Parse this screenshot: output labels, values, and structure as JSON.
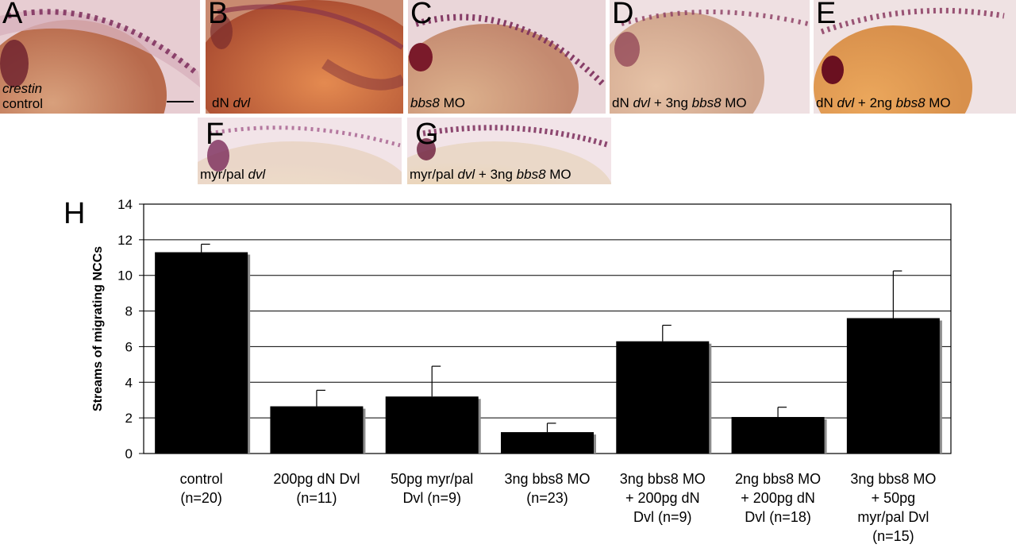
{
  "panels": [
    {
      "letter": "A",
      "caption_html": "<i>crestin</i><br>control"
    },
    {
      "letter": "B",
      "caption_html": "dN <i>dvl</i>"
    },
    {
      "letter": "C",
      "caption_html": "<i>bbs8</i> MO"
    },
    {
      "letter": "D",
      "caption_html": "dN <i>dvl</i> + 3ng <i>bbs8</i> MO"
    },
    {
      "letter": "E",
      "caption_html": "dN <i>dvl</i> + 2ng <i>bbs8</i> MO"
    },
    {
      "letter": "F",
      "caption_html": "myr/pal <i>dvl</i>"
    },
    {
      "letter": "G",
      "caption_html": "myr/pal <i>dvl</i> + 3ng <i>bbs8</i> MO"
    }
  ],
  "chart_letter": "H",
  "colors": {
    "bar": "#000000",
    "bar_shadow": "#8c8c8c",
    "grid": "#000000"
  },
  "chart_data": {
    "type": "bar",
    "ylabel": "Streams of migrating NCCs",
    "xlabel": "",
    "ylim": [
      0,
      14
    ],
    "yticks": [
      0,
      2,
      4,
      6,
      8,
      10,
      12,
      14
    ],
    "grid": true,
    "categories": [
      [
        "control",
        "(n=20)"
      ],
      [
        "200pg dN Dvl",
        "(n=11)"
      ],
      [
        "50pg myr/pal",
        "Dvl (n=9)"
      ],
      [
        "3ng bbs8 MO",
        "(n=23)"
      ],
      [
        "3ng bbs8 MO",
        "+ 200pg dN",
        "Dvl (n=9)"
      ],
      [
        "2ng bbs8 MO",
        "+ 200pg dN",
        "Dvl (n=18)"
      ],
      [
        "3ng bbs8 MO",
        "+ 50pg",
        "myr/pal Dvl",
        "(n=15)"
      ]
    ],
    "values": [
      11.3,
      2.65,
      3.2,
      1.2,
      6.3,
      2.05,
      7.6
    ],
    "errors": [
      0.45,
      0.9,
      1.7,
      0.5,
      0.9,
      0.55,
      2.65
    ]
  }
}
